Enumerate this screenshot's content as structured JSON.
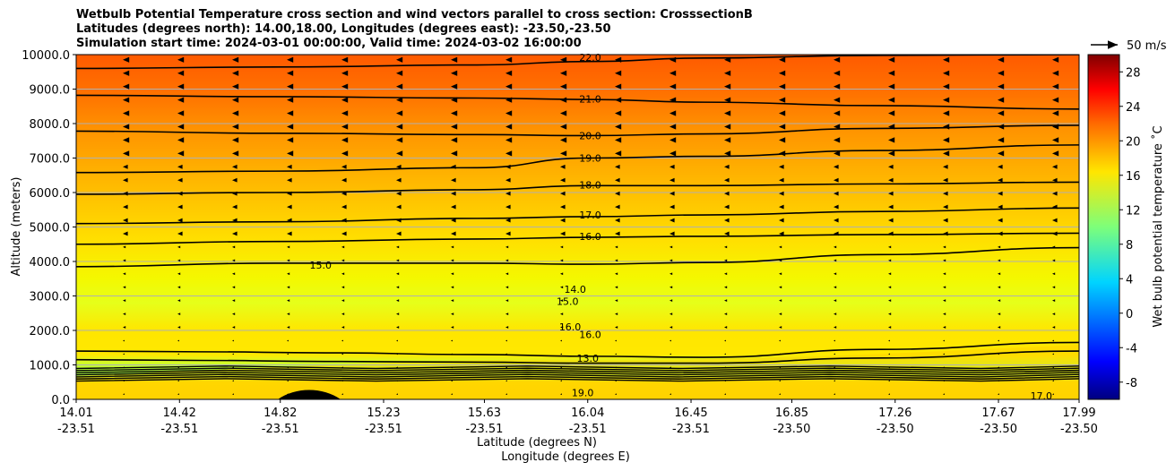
{
  "chart_data": {
    "type": "heatmap",
    "title": [
      "Wetbulb Potential Temperature cross section and wind vectors parallel to cross section: CrosssectionB",
      "Latitudes (degrees north): 14.00,18.00, Longitudes (degrees east): -23.50,-23.50",
      "Simulation start time: 2024-03-01 00:00:00, Valid time: 2024-03-02 16:00:00"
    ],
    "ylabel": "Altitude (meters)",
    "xlabel": "Latitude (degrees N)",
    "xlabel2": "Longitude (degrees E)",
    "ylim": [
      0,
      10000
    ],
    "yticks": [
      "0.0",
      "1000.0",
      "2000.0",
      "3000.0",
      "4000.0",
      "5000.0",
      "6000.0",
      "7000.0",
      "8000.0",
      "9000.0",
      "10000.0"
    ],
    "yticks_values": [
      0,
      1000,
      2000,
      3000,
      4000,
      5000,
      6000,
      7000,
      8000,
      9000,
      10000
    ],
    "xlim": [
      14.01,
      17.99
    ],
    "xticks": [
      {
        "lat": "14.01",
        "lon": "-23.51",
        "v": 14.01
      },
      {
        "lat": "14.42",
        "lon": "-23.51",
        "v": 14.42
      },
      {
        "lat": "14.82",
        "lon": "-23.51",
        "v": 14.82
      },
      {
        "lat": "15.23",
        "lon": "-23.51",
        "v": 15.23
      },
      {
        "lat": "15.63",
        "lon": "-23.51",
        "v": 15.63
      },
      {
        "lat": "16.04",
        "lon": "-23.51",
        "v": 16.04
      },
      {
        "lat": "16.45",
        "lon": "-23.51",
        "v": 16.45
      },
      {
        "lat": "16.85",
        "lon": "-23.50",
        "v": 16.85
      },
      {
        "lat": "17.26",
        "lon": "-23.50",
        "v": 17.26
      },
      {
        "lat": "17.67",
        "lon": "-23.50",
        "v": 17.67
      },
      {
        "lat": "17.99",
        "lon": "-23.50",
        "v": 17.99
      }
    ],
    "grid": true,
    "colorbar": {
      "label": "Wet bulb potential temperature ˚C",
      "range": [
        -10,
        30
      ],
      "ticks": [
        "-8",
        "-4",
        "0",
        "4",
        "8",
        "12",
        "16",
        "20",
        "24",
        "28"
      ],
      "tick_values": [
        -8,
        -4,
        0,
        4,
        8,
        12,
        16,
        20,
        24,
        28
      ]
    },
    "vector_key": {
      "label": "50 m/s",
      "speed": 50
    },
    "contour_labels": [
      {
        "text": "22.0",
        "x": 16.05,
        "y": 9920
      },
      {
        "text": "21.0",
        "x": 16.05,
        "y": 8720
      },
      {
        "text": "20.0",
        "x": 16.05,
        "y": 7650
      },
      {
        "text": "19.0",
        "x": 16.05,
        "y": 7000
      },
      {
        "text": "18.0",
        "x": 16.05,
        "y": 6220
      },
      {
        "text": "17.0",
        "x": 16.05,
        "y": 5350
      },
      {
        "text": "16.0",
        "x": 16.05,
        "y": 4730
      },
      {
        "text": "15.0",
        "x": 14.98,
        "y": 3900
      },
      {
        "text": "14.0",
        "x": 15.99,
        "y": 3200
      },
      {
        "text": "15.0",
        "x": 15.96,
        "y": 2840
      },
      {
        "text": "16.0",
        "x": 15.97,
        "y": 2100
      },
      {
        "text": "16.0",
        "x": 16.05,
        "y": 1880
      },
      {
        "text": "13.0",
        "x": 16.04,
        "y": 1200
      },
      {
        "text": "17.0",
        "x": 17.84,
        "y": 100
      },
      {
        "text": "19.0",
        "x": 16.02,
        "y": 200
      }
    ],
    "isotherms": [
      {
        "level": 22,
        "x": [
          14.01,
          14.8,
          15.6,
          16.04,
          16.5,
          17.2,
          17.99
        ],
        "y": [
          9600,
          9640,
          9700,
          9800,
          9900,
          9980,
          10000
        ]
      },
      {
        "level": 21,
        "x": [
          14.01,
          14.8,
          15.6,
          16.04,
          16.5,
          17.2,
          17.99
        ],
        "y": [
          8820,
          8780,
          8740,
          8700,
          8620,
          8520,
          8420
        ]
      },
      {
        "level": 20,
        "x": [
          14.01,
          14.8,
          15.6,
          16.04,
          16.5,
          17.2,
          17.99
        ],
        "y": [
          7780,
          7720,
          7680,
          7650,
          7700,
          7860,
          7950
        ]
      },
      {
        "level": 19,
        "x": [
          14.01,
          14.8,
          15.6,
          16.04,
          16.5,
          17.2,
          17.99
        ],
        "y": [
          6580,
          6620,
          6720,
          7000,
          7050,
          7220,
          7380
        ]
      },
      {
        "level": 18,
        "x": [
          14.01,
          14.8,
          15.6,
          16.04,
          16.5,
          17.2,
          17.99
        ],
        "y": [
          5950,
          6000,
          6080,
          6200,
          6200,
          6250,
          6300
        ]
      },
      {
        "level": 17,
        "x": [
          14.01,
          14.8,
          15.6,
          16.04,
          16.5,
          17.2,
          17.99
        ],
        "y": [
          5100,
          5150,
          5250,
          5300,
          5350,
          5450,
          5550
        ]
      },
      {
        "level": 16,
        "x": [
          14.01,
          14.8,
          15.6,
          16.04,
          16.5,
          17.2,
          17.99
        ],
        "y": [
          4500,
          4580,
          4650,
          4700,
          4730,
          4780,
          4820
        ]
      },
      {
        "level": 15,
        "x": [
          14.01,
          14.8,
          15.3,
          15.6,
          16.04,
          16.5,
          17.2,
          17.99
        ],
        "y": [
          3850,
          3950,
          3950,
          3950,
          3920,
          3970,
          4200,
          4400
        ]
      },
      {
        "level": 13,
        "x": [
          14.01,
          14.5,
          15.0,
          15.6,
          16.04,
          16.5,
          17.2,
          17.99
        ],
        "y": [
          1400,
          1380,
          1350,
          1300,
          1250,
          1220,
          1450,
          1650
        ]
      },
      {
        "level": 12,
        "x": [
          14.01,
          14.5,
          15.0,
          15.6,
          16.04,
          16.5,
          17.2,
          17.99
        ],
        "y": [
          1150,
          1130,
          1100,
          1080,
          1050,
          1050,
          1200,
          1400
        ]
      }
    ]
  }
}
